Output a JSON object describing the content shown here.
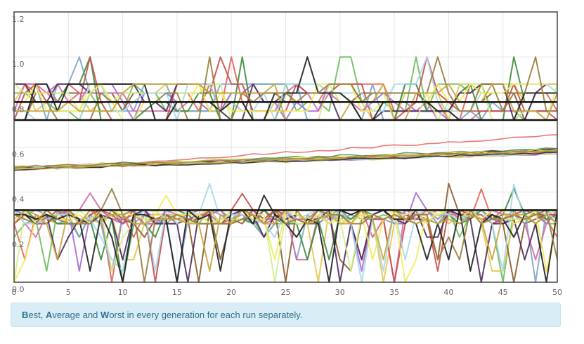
{
  "chart_data": {
    "type": "line",
    "title": "",
    "xlabel": "",
    "ylabel": "",
    "xlim": [
      0,
      50
    ],
    "ylim": [
      0,
      1.2
    ],
    "x_ticks": [
      "0",
      "5",
      "10",
      "15",
      "20",
      "25",
      "30",
      "35",
      "40",
      "45",
      "50"
    ],
    "y_ticks": [
      "0.0",
      "0.2",
      "0.4",
      "0.6",
      "0.8",
      "1.0",
      "1.2"
    ],
    "y_tick_values": [
      0,
      0.2,
      0.4,
      0.6,
      0.8,
      1.0,
      1.2
    ],
    "grid": true,
    "legend": "none",
    "series_colors": [
      "#e8605a",
      "#6dbd5c",
      "#a26bd6",
      "#e3c94e",
      "#8a5c2a",
      "#7fa4c4",
      "#d46aa6",
      "#3c8c3c",
      "#c94c4c",
      "#4c2a5c",
      "#d4ef8c",
      "#a8d8e8",
      "#f2ec5c",
      "#1e1e1e",
      "#9a7c3c",
      "#c9a43c"
    ],
    "reference_lines": [
      {
        "name": "best-upper",
        "y": 0.8
      },
      {
        "name": "best-lower",
        "y": 0.72
      },
      {
        "name": "worst-line",
        "y": 0.32
      }
    ],
    "bands": {
      "best": {
        "levels": [
          0.72,
          0.76,
          0.8,
          0.84,
          0.88
        ],
        "min": 0.7,
        "max": 0.92
      },
      "average": {
        "start": 0.505,
        "end": 0.58,
        "spread": 0.015,
        "outlier_end": 0.66
      },
      "worst": {
        "levels": [
          0.26,
          0.28,
          0.3,
          0.32
        ],
        "drop_levels": [
          0.0,
          0.05,
          0.1,
          0.2
        ],
        "min": 0.0,
        "max": 0.44
      }
    },
    "runs": 16,
    "generations": 50
  },
  "caption": {
    "b": "B",
    "b_rest": "est, ",
    "a": "A",
    "a_rest": "verage and ",
    "w": "W",
    "w_rest": "orst in every generation for each run separately."
  }
}
